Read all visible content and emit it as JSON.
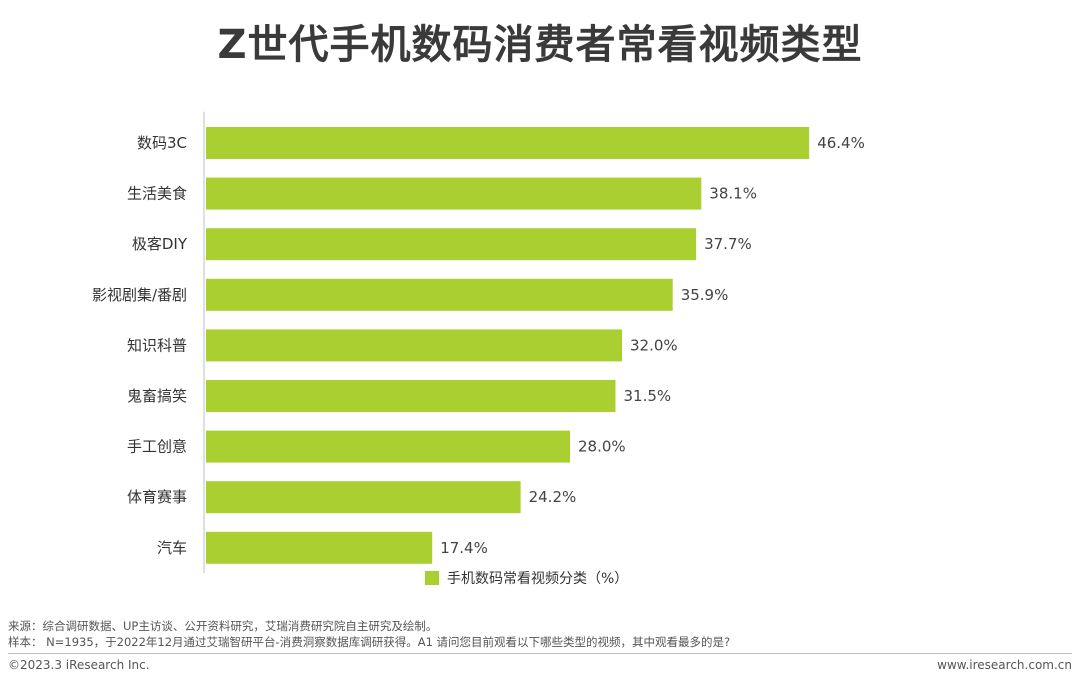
{
  "title": "Z世代手机数码消费者常看视频类型",
  "chart_data": {
    "type": "bar",
    "orientation": "horizontal",
    "categories": [
      "数码3C",
      "生活美食",
      "极客DIY",
      "影视剧集/番剧",
      "知识科普",
      "鬼畜搞笑",
      "手工创意",
      "体育赛事",
      "汽车"
    ],
    "series": [
      {
        "name": "手机数码常看视频分类（%）",
        "values": [
          46.4,
          38.1,
          37.7,
          35.9,
          32.0,
          31.5,
          28.0,
          24.2,
          17.4
        ],
        "color": "#a9d030"
      }
    ],
    "value_suffix": "%",
    "xlim": [
      0,
      50
    ],
    "grid": false,
    "legend": "bottom"
  },
  "footer": {
    "source": "来源：综合调研数据、UP主访谈、公开资料研究，艾瑞消费研究院自主研究及绘制。",
    "sample": "样本： N=1935，于2022年12月通过艾瑞智研平台-消费洞察数据库调研获得。A1 请问您目前观看以下哪些类型的视频，其中观看最多的是?",
    "copyright": "©2023.3 iResearch Inc.",
    "website": "www.iresearch.com.cn"
  }
}
